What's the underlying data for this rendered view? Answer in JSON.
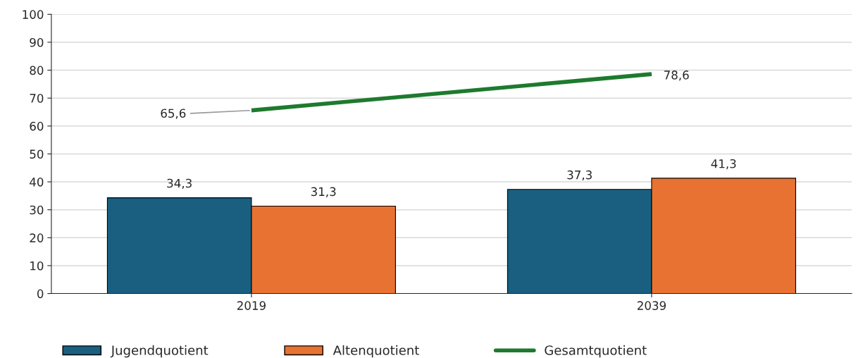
{
  "chart_data": {
    "type": "bar",
    "categories": [
      "2019",
      "2039"
    ],
    "series": [
      {
        "name": "Jugendquotient",
        "color": "#1a5f80",
        "values": [
          34.3,
          37.3
        ],
        "value_labels": [
          "34,3",
          "37,3"
        ]
      },
      {
        "name": "Altenquotient",
        "color": "#e87232",
        "values": [
          31.3,
          41.3
        ],
        "value_labels": [
          "31,3",
          "41,3"
        ]
      },
      {
        "name": "Gesamtquotient",
        "type": "line",
        "color": "#1e7a2e",
        "values": [
          65.6,
          78.6
        ],
        "value_labels": [
          "65,6",
          "78,6"
        ]
      }
    ],
    "ylim": [
      0,
      100
    ],
    "yticks": [
      0,
      10,
      20,
      30,
      40,
      50,
      60,
      70,
      80,
      90,
      100
    ],
    "grid": "y",
    "legend": "bottom"
  }
}
